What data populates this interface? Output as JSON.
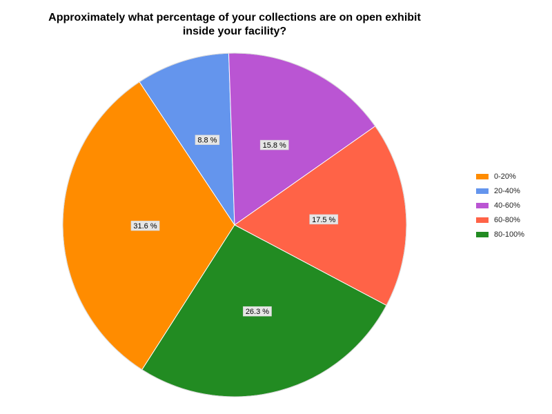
{
  "chart_data": {
    "type": "pie",
    "title_line1": "Approximately what percentage of your collections are on open exhibit",
    "title_line2": "inside your facility?",
    "categories": [
      "0-20%",
      "20-40%",
      "40-60%",
      "60-80%",
      "80-100%"
    ],
    "values": [
      31.6,
      8.8,
      15.8,
      17.5,
      26.3
    ],
    "value_labels": [
      "31.6 %",
      "8.8 %",
      "15.8 %",
      "17.5 %",
      "26.3 %"
    ],
    "colors": [
      "#ff8c00",
      "#6495ed",
      "#ba55d3",
      "#ff6347",
      "#228b22"
    ],
    "legend_position": "right"
  }
}
